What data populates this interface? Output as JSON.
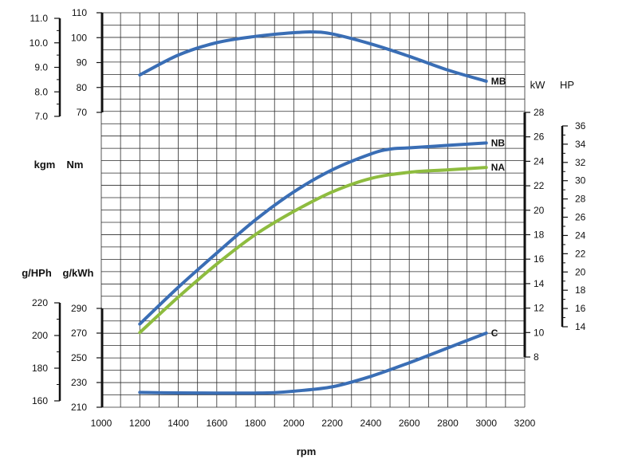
{
  "chart_data": {
    "type": "line",
    "title": "",
    "xlabel": "rpm",
    "x_ticks": [
      1000,
      1200,
      1400,
      1600,
      1800,
      2000,
      2200,
      2400,
      2600,
      2800,
      3000,
      3200
    ],
    "xlim": [
      1000,
      3200
    ],
    "series": [
      {
        "name": "MB",
        "color": "#3a6eb5",
        "axis": "torque_nm",
        "x": [
          1200,
          1400,
          1600,
          1800,
          2000,
          2100,
          2200,
          2400,
          2600,
          2800,
          3000
        ],
        "y": [
          85,
          93,
          98,
          100.5,
          102,
          102.3,
          101.5,
          97.5,
          92.5,
          87,
          82.5
        ]
      },
      {
        "name": "NB",
        "color": "#3a6eb5",
        "axis": "power_kw",
        "x": [
          1200,
          1400,
          1600,
          1800,
          2000,
          2200,
          2400,
          2500,
          2600,
          2800,
          3000
        ],
        "y": [
          10.7,
          13.7,
          16.5,
          19.2,
          21.5,
          23.3,
          24.6,
          25,
          25.1,
          25.3,
          25.5
        ]
      },
      {
        "name": "NA",
        "color": "#8ebc3f",
        "axis": "power_kw",
        "x": [
          1200,
          1400,
          1600,
          1800,
          2000,
          2200,
          2400,
          2600,
          2800,
          3000
        ],
        "y": [
          10,
          12.9,
          15.6,
          18,
          19.9,
          21.5,
          22.6,
          23.1,
          23.3,
          23.5
        ]
      },
      {
        "name": "C",
        "color": "#3a6eb5",
        "axis": "bsfc_gkwh",
        "x": [
          1200,
          1400,
          1600,
          1800,
          1900,
          2000,
          2200,
          2400,
          2600,
          2800,
          3000
        ],
        "y": [
          222,
          221.6,
          221.5,
          221.5,
          221.8,
          223,
          226.5,
          235,
          246,
          258,
          270
        ]
      }
    ],
    "axes": {
      "torque_kgm": {
        "label": "kgm",
        "ticks": [
          "11.0",
          "10.0",
          "9.0",
          "8.0",
          "7.0"
        ]
      },
      "torque_nm": {
        "label": "Nm",
        "ticks": [
          "110",
          "100",
          "90",
          "80",
          "70"
        ],
        "ylim": [
          70,
          110
        ]
      },
      "power_kw": {
        "label": "kW",
        "ticks": [
          "28",
          "26",
          "24",
          "22",
          "20",
          "18",
          "16",
          "14",
          "12",
          "10",
          "8"
        ],
        "ylim": [
          8,
          28
        ]
      },
      "power_hp": {
        "label": "HP",
        "ticks": [
          "36",
          "34",
          "32",
          "30",
          "28",
          "26",
          "24",
          "22",
          "20",
          "18",
          "16",
          "14"
        ]
      },
      "bsfc_ghph": {
        "label": "g/HPh",
        "ticks": [
          "220",
          "200",
          "180",
          "160"
        ]
      },
      "bsfc_gkwh": {
        "label": "g/kWh",
        "ticks": [
          "290",
          "270",
          "250",
          "230",
          "210"
        ],
        "ylim": [
          210,
          290
        ]
      }
    }
  }
}
